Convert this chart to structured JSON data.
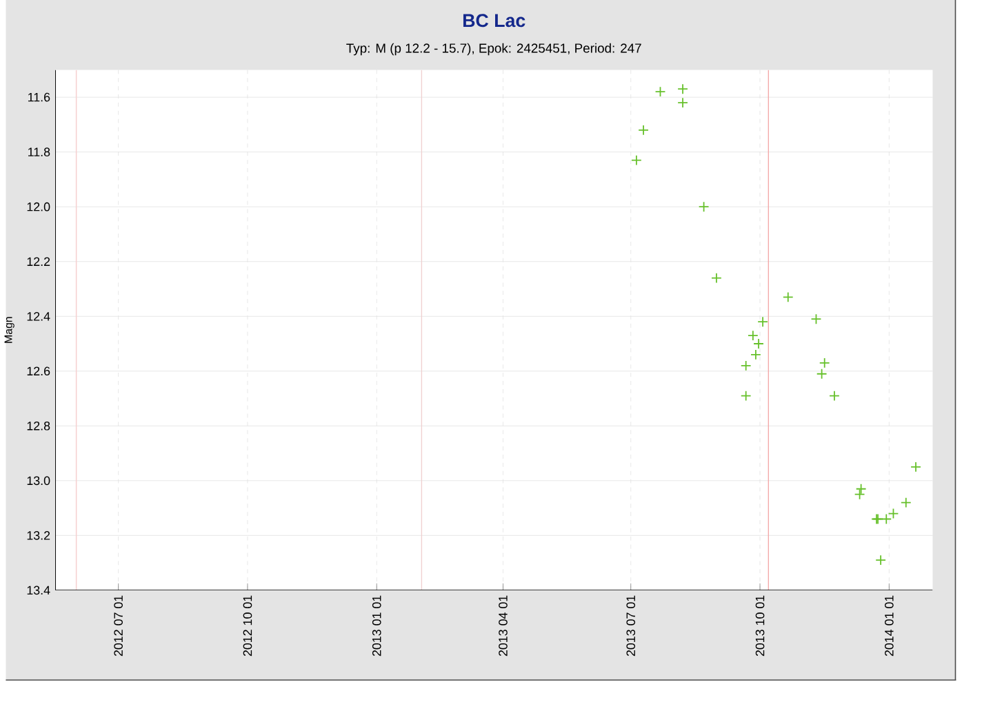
{
  "chart_data": {
    "type": "scatter",
    "title": "BC Lac",
    "subtitle": "Typ: M (p 12.2 - 15.7), Epok: 2425451, Period: 247",
    "ylabel": "Magn",
    "x": [
      "2013-07-05",
      "2013-07-10",
      "2013-07-22",
      "2013-08-07",
      "2013-08-07",
      "2013-08-22",
      "2013-08-31",
      "2013-09-21",
      "2013-09-21",
      "2013-09-26",
      "2013-09-28",
      "2013-09-30",
      "2013-10-03",
      "2013-10-21",
      "2013-11-10",
      "2013-11-14",
      "2013-11-16",
      "2013-11-23",
      "2013-12-11",
      "2013-12-12",
      "2013-12-23",
      "2013-12-24",
      "2013-12-26",
      "2013-12-30",
      "2014-01-04",
      "2014-01-13",
      "2014-01-20"
    ],
    "values": [
      11.83,
      11.72,
      11.58,
      11.57,
      11.62,
      12.0,
      12.26,
      12.58,
      12.69,
      12.47,
      12.54,
      12.5,
      12.42,
      12.33,
      12.41,
      12.61,
      12.57,
      12.69,
      13.05,
      13.03,
      13.14,
      13.14,
      13.29,
      13.14,
      13.12,
      13.08,
      12.95
    ],
    "color": "#66c02a",
    "marker": "cross",
    "grid": true,
    "xlim": [
      "2012-05-17",
      "2014-02-01"
    ],
    "xticks": [
      {
        "value": "2012-07-01",
        "label": "2012 07 01"
      },
      {
        "value": "2012-10-01",
        "label": "2012 10 01"
      },
      {
        "value": "2013-01-01",
        "label": "2013 01 01"
      },
      {
        "value": "2013-04-01",
        "label": "2013 04 01"
      },
      {
        "value": "2013-07-01",
        "label": "2013 07 01"
      },
      {
        "value": "2013-10-01",
        "label": "2013 10 01"
      },
      {
        "value": "2014-01-01",
        "label": "2014 01 01"
      }
    ],
    "ylim": [
      13.4,
      11.5
    ],
    "yticks": [
      11.6,
      11.8,
      {
        "value": 12.0,
        "label": "12.0"
      },
      12.2,
      12.4,
      12.6,
      12.8,
      {
        "value": 13.0,
        "label": "13.0"
      },
      13.2,
      13.4
    ],
    "ref_lines": [
      {
        "axis": "x",
        "value": "2012-06-01",
        "color": "#f6d0d0"
      },
      {
        "axis": "x",
        "value": "2013-02-02",
        "color": "#f0d0d0"
      },
      {
        "axis": "x",
        "value": "2013-10-07",
        "color": "#f4a8a8"
      }
    ]
  }
}
